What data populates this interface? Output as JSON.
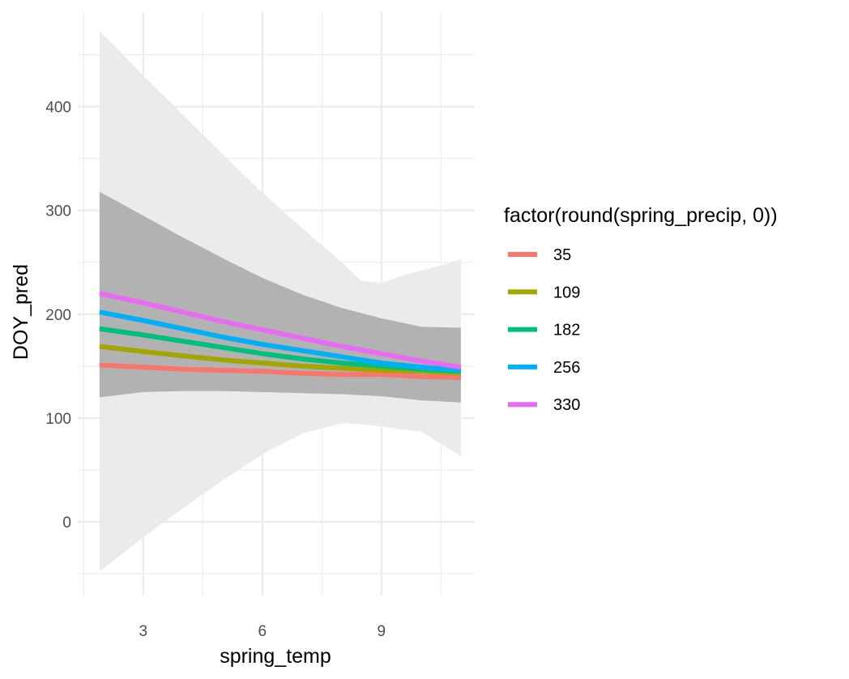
{
  "chart_data": {
    "type": "line",
    "xlabel": "spring_temp",
    "ylabel": "DOY_pred",
    "xlim": [
      1.35,
      11.35
    ],
    "ylim": [
      -71,
      491
    ],
    "x_major_ticks": [
      3,
      6,
      9
    ],
    "x_minor_ticks": [
      1.5,
      4.5,
      7.5,
      10.5
    ],
    "y_major_ticks": [
      0,
      100,
      200,
      300,
      400
    ],
    "y_minor_ticks": [
      -50,
      50,
      150,
      250,
      350,
      450
    ],
    "x_tick_labels": [
      "3",
      "6",
      "9"
    ],
    "y_tick_labels": [
      "0",
      "100",
      "200",
      "300",
      "400"
    ],
    "grid": true,
    "legend": {
      "title": "factor(round(spring_precip, 0))",
      "position": "right"
    },
    "x": [
      1.9,
      3,
      4,
      5,
      6,
      7,
      8,
      9,
      10,
      11
    ],
    "series": [
      {
        "name": "35",
        "color": "#F8766D",
        "values": [
          151,
          149,
          147,
          146,
          145,
          143,
          142,
          142,
          140,
          139
        ]
      },
      {
        "name": "109",
        "color": "#A3A500",
        "values": [
          169,
          164,
          160,
          156,
          153,
          150,
          148,
          146,
          145,
          143
        ]
      },
      {
        "name": "182",
        "color": "#00BF7D",
        "values": [
          186,
          180,
          174,
          168,
          162,
          157,
          153,
          150,
          147,
          145
        ]
      },
      {
        "name": "256",
        "color": "#00B0F6",
        "values": [
          202,
          194,
          186,
          178,
          171,
          165,
          159,
          153,
          149,
          146
        ]
      },
      {
        "name": "330",
        "color": "#E76BF3",
        "values": [
          220,
          211,
          202,
          193,
          185,
          177,
          169,
          162,
          155,
          149
        ]
      }
    ],
    "ribbons": [
      {
        "fill": "#ebebeb",
        "x": [
          1.9,
          3,
          4,
          5,
          6,
          7,
          8,
          8.5,
          9,
          9.5,
          10,
          10.5,
          11
        ],
        "upper": [
          473,
          430,
          392,
          354,
          317,
          283,
          250,
          232,
          230,
          237,
          242,
          247,
          253
        ],
        "lower": [
          -48,
          -15,
          13,
          40,
          65,
          85,
          95,
          94,
          92,
          89,
          87,
          75,
          63
        ]
      },
      {
        "fill": "#b2b2b2",
        "x": [
          1.9,
          3,
          4,
          5,
          6,
          7,
          8,
          9,
          10,
          11
        ],
        "upper": [
          318,
          295,
          274,
          254,
          235,
          219,
          206,
          196,
          188,
          187
        ],
        "lower": [
          120,
          125,
          126,
          126,
          125,
          124,
          123,
          121,
          117,
          115
        ]
      }
    ]
  }
}
